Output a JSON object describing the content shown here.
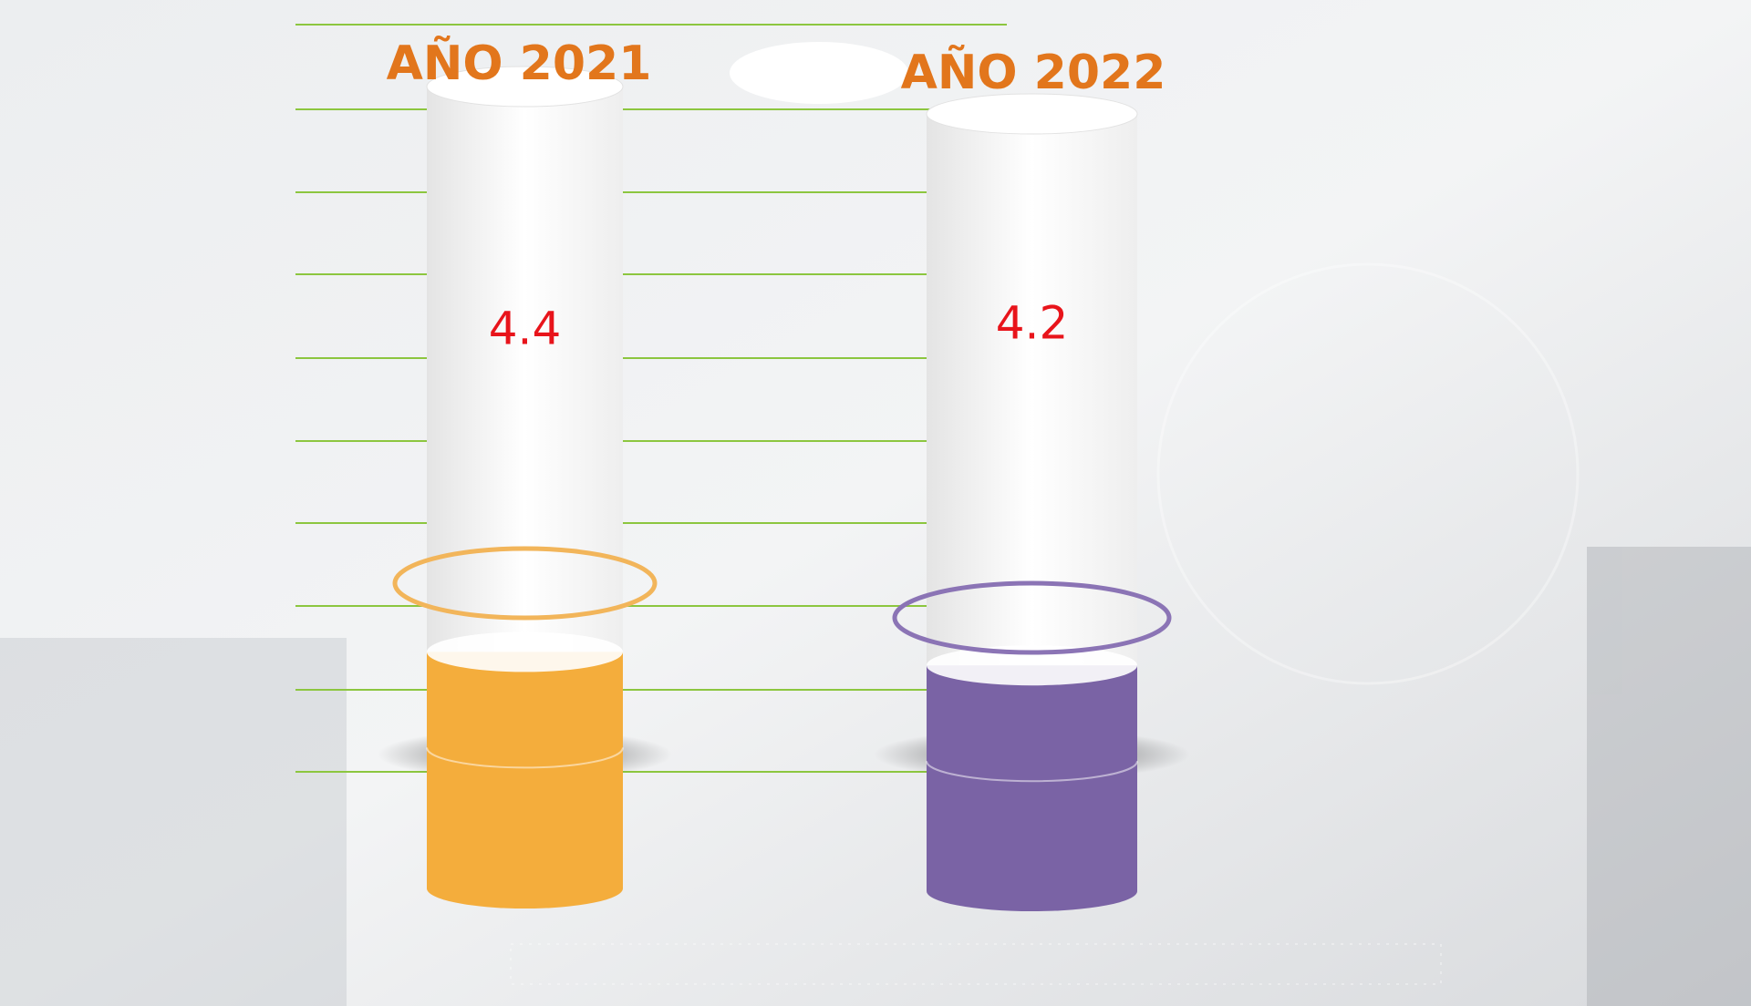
{
  "chart_data": {
    "type": "bar",
    "categories": [
      "AÑO 2021",
      "AÑO 2022"
    ],
    "values": [
      4.4,
      4.2
    ],
    "colors": [
      "#f4ad3c",
      "#7a63a5"
    ],
    "ring_colors": [
      "#f2b55a",
      "#8b74b5"
    ]
  }
}
